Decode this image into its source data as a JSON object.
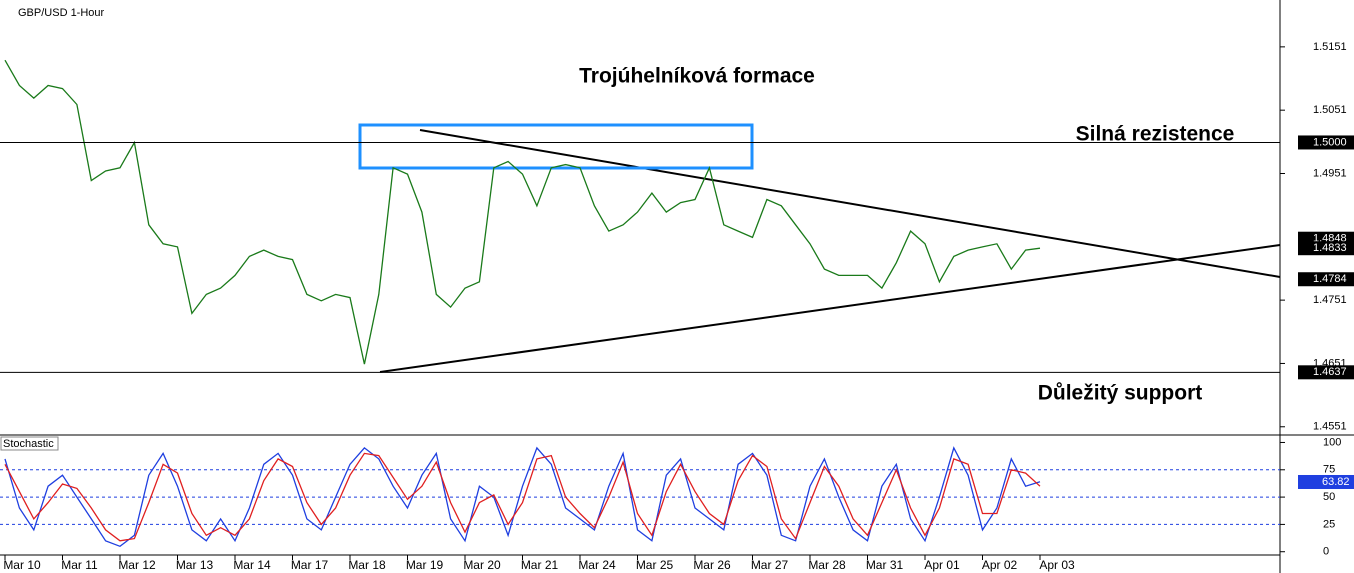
{
  "chart_data": [
    {
      "type": "line",
      "title": "GBP/USD 1-Hour",
      "color": "#1a7a1a",
      "categories": [
        "Mar 10",
        null,
        null,
        null,
        "Mar 11",
        null,
        null,
        null,
        "Mar 12",
        null,
        null,
        null,
        "Mar 13",
        null,
        null,
        null,
        "Mar 14",
        null,
        null,
        null,
        "Mar 17",
        null,
        null,
        null,
        "Mar 18",
        null,
        null,
        null,
        "Mar 19",
        null,
        null,
        null,
        "Mar 20",
        null,
        null,
        null,
        "Mar 21",
        null,
        null,
        null,
        "Mar 24",
        null,
        null,
        null,
        "Mar 25",
        null,
        null,
        null,
        "Mar 26",
        null,
        null,
        null,
        "Mar 27",
        null,
        null,
        null,
        "Mar 28",
        null,
        null,
        null,
        "Mar 31",
        null,
        null,
        null,
        "Apr 01",
        null,
        null,
        null,
        "Apr 02",
        null,
        null,
        null,
        "Apr 03"
      ],
      "values": [
        1.513,
        1.509,
        1.507,
        1.509,
        1.5085,
        1.506,
        1.494,
        1.4955,
        1.496,
        1.5,
        1.487,
        1.484,
        1.4835,
        1.473,
        1.476,
        1.477,
        1.479,
        1.482,
        1.483,
        1.482,
        1.4815,
        1.476,
        1.475,
        1.476,
        1.4755,
        1.465,
        1.476,
        1.496,
        1.495,
        1.489,
        1.476,
        1.474,
        1.477,
        1.478,
        1.496,
        1.497,
        1.495,
        1.49,
        1.496,
        1.4965,
        1.496,
        1.49,
        1.486,
        1.487,
        1.489,
        1.492,
        1.489,
        1.4905,
        1.491,
        1.496,
        1.487,
        1.486,
        1.485,
        1.491,
        1.49,
        1.487,
        1.484,
        1.48,
        1.479,
        1.479,
        1.479,
        1.477,
        1.481,
        1.486,
        1.484,
        1.478,
        1.482,
        1.483,
        1.4835,
        1.484,
        1.48,
        1.483,
        1.4833
      ],
      "ylim": [
        1.4538,
        1.5225
      ],
      "yticks": [
        1.5151,
        1.5051,
        1.4951,
        1.4751,
        1.4651,
        1.4551
      ],
      "levels": [
        {
          "value": 1.5,
          "label": "1.5000"
        },
        1.4637
      ],
      "price_markers": [
        1.4848,
        1.4833,
        1.4784
      ],
      "annotations": [
        "Trojúhelníková formace",
        "Silná rezistence",
        "Důležitý support"
      ]
    },
    {
      "type": "line",
      "title": "Stochastic",
      "series": [
        {
          "color": "#1f3fe0",
          "values": [
            85,
            40,
            20,
            60,
            70,
            50,
            30,
            10,
            5,
            15,
            70,
            90,
            60,
            20,
            10,
            30,
            10,
            40,
            80,
            90,
            70,
            30,
            20,
            50,
            80,
            95,
            85,
            60,
            40,
            70,
            90,
            30,
            10,
            60,
            50,
            15,
            60,
            95,
            80,
            40,
            30,
            20,
            60,
            90,
            20,
            10,
            70,
            85,
            40,
            30,
            20,
            80,
            90,
            70,
            15,
            10,
            60,
            85,
            50,
            20,
            10,
            60,
            80,
            30,
            10,
            50,
            95,
            70,
            20,
            40,
            85,
            60,
            64
          ]
        },
        {
          "color": "#e02020",
          "values": [
            80,
            55,
            30,
            45,
            62,
            58,
            40,
            20,
            10,
            12,
            45,
            80,
            72,
            35,
            15,
            22,
            15,
            30,
            65,
            85,
            78,
            45,
            25,
            40,
            70,
            90,
            88,
            68,
            48,
            60,
            82,
            45,
            18,
            45,
            52,
            25,
            45,
            85,
            88,
            50,
            35,
            22,
            50,
            82,
            35,
            15,
            55,
            80,
            55,
            35,
            25,
            65,
            88,
            78,
            30,
            12,
            45,
            78,
            60,
            30,
            15,
            45,
            75,
            40,
            15,
            40,
            85,
            80,
            35,
            35,
            75,
            72,
            60
          ]
        }
      ],
      "ylim": [
        -3,
        105
      ],
      "yticks": [
        100,
        75,
        50,
        25,
        0
      ],
      "dashed_levels": [
        75,
        50,
        25
      ],
      "current": 63.82
    }
  ]
}
